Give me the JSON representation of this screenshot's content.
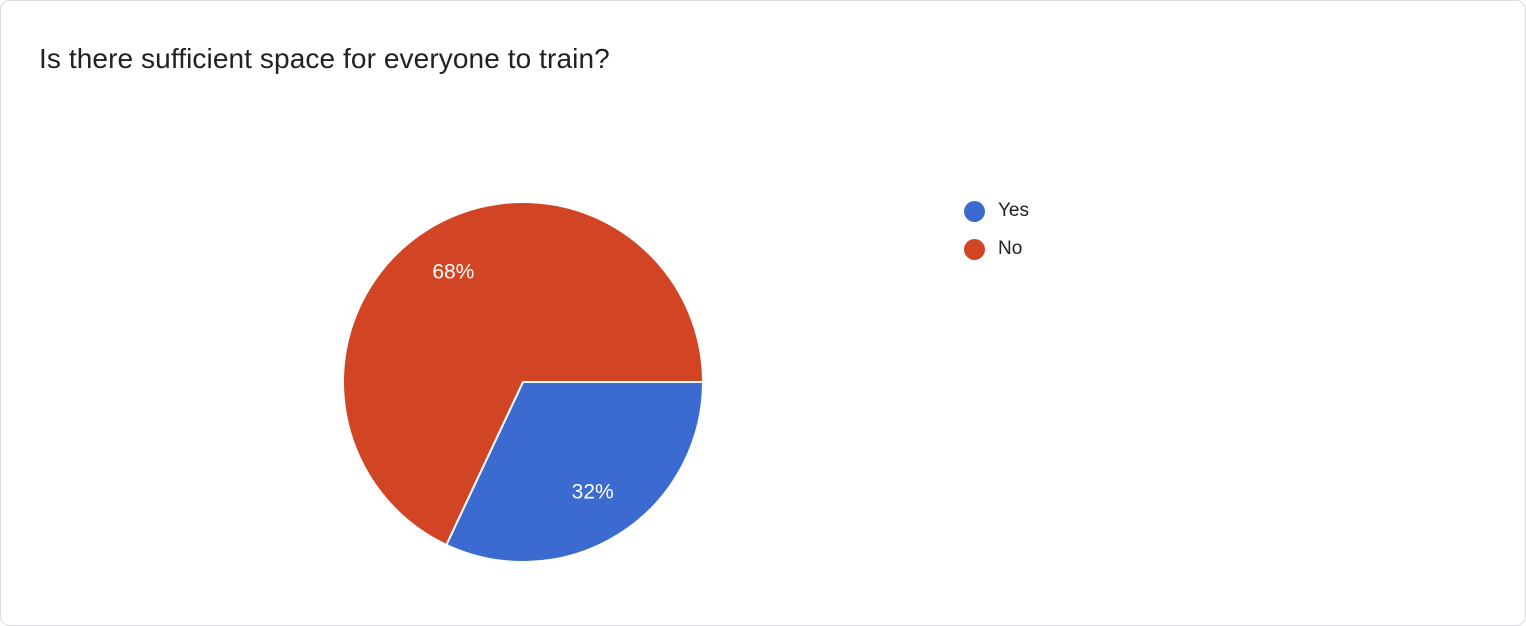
{
  "chart_data": {
    "type": "pie",
    "title": "Is there sufficient space for everyone to train?",
    "slices": [
      {
        "label": "Yes",
        "value": 32,
        "percent_label": "32%",
        "color": "#3b6bd1"
      },
      {
        "label": "No",
        "value": 68,
        "percent_label": "68%",
        "color": "#d14524"
      }
    ],
    "start_angle_deg": 0,
    "direction": "clockwise",
    "legend_position": "right",
    "slice_label_color": "#ffffff",
    "slice_stroke_color": "#ffffff",
    "title_color": "#202124",
    "legend_text_color": "#202124"
  }
}
